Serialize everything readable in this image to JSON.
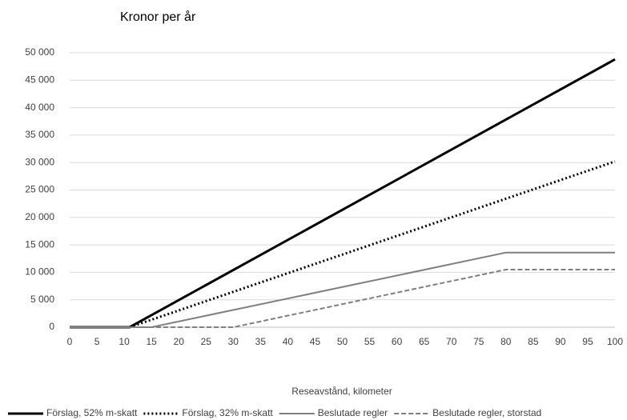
{
  "chart_data": {
    "type": "line",
    "title": "Kronor per år",
    "x_label": "Reseavstånd, kilometer",
    "xlim": [
      0,
      100
    ],
    "xticks": [
      0,
      5,
      10,
      15,
      20,
      25,
      30,
      35,
      40,
      45,
      50,
      55,
      60,
      65,
      70,
      75,
      80,
      85,
      90,
      95,
      100
    ],
    "ylim": [
      0,
      50000
    ],
    "yticks": [
      0,
      {
        "value": 5000,
        "label": "5 000"
      },
      {
        "value": 10000,
        "label": "10 000"
      },
      {
        "value": 15000,
        "label": "15 000"
      },
      {
        "value": 20000,
        "label": "20 000"
      },
      {
        "value": 25000,
        "label": "25 000"
      },
      {
        "value": 30000,
        "label": "30 000"
      },
      {
        "value": 35000,
        "label": "35 000"
      },
      {
        "value": 40000,
        "label": "40 000"
      },
      {
        "value": 45000,
        "label": "45 000"
      },
      {
        "value": 50000,
        "label": "50 000"
      }
    ],
    "grid": true,
    "legend": "bottom",
    "series": [
      {
        "name": "Förslag, 52% m-skatt",
        "color": "#000000",
        "line_style": "solid",
        "line_width": 3,
        "x": [
          0,
          11,
          100
        ],
        "values": [
          0,
          0,
          48800
        ]
      },
      {
        "name": "Förslag, 32% m-skatt",
        "color": "#000000",
        "line_style": "dotted",
        "line_width": 3,
        "x": [
          0,
          11,
          100
        ],
        "values": [
          0,
          0,
          30200
        ]
      },
      {
        "name": "Beslutade regler",
        "color": "#7f7f7f",
        "line_style": "solid",
        "line_width": 2,
        "x": [
          0,
          15,
          80,
          100
        ],
        "values": [
          0,
          0,
          13600,
          13600
        ]
      },
      {
        "name": "Beslutade regler, storstad",
        "color": "#7f7f7f",
        "line_style": "dashed",
        "line_width": 2,
        "x": [
          0,
          30,
          80,
          100
        ],
        "values": [
          0,
          0,
          10500,
          10500
        ]
      }
    ]
  }
}
